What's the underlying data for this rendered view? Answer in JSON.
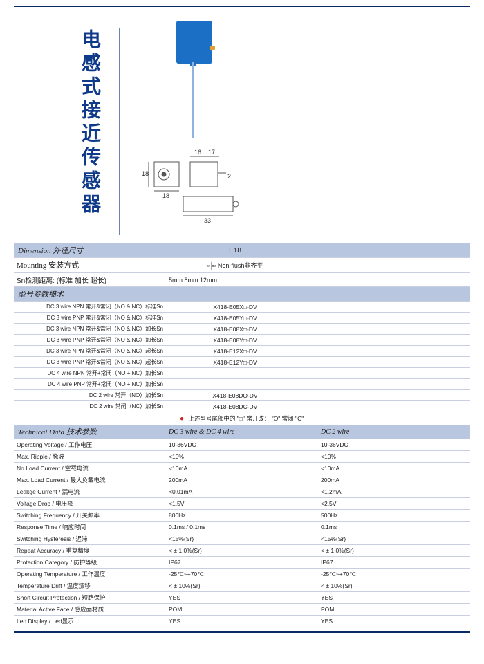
{
  "page": {
    "title_cn": "电感式接近传感器",
    "colors": {
      "accent": "#0f3a8a",
      "band": "#b8c6e0",
      "rule": "#c8d0e0",
      "sensor": "#1b6fc4"
    }
  },
  "dimension_labels": {
    "w1": "16",
    "w2": "17",
    "h1": "18",
    "h2": "18",
    "d": "33",
    "t": "2"
  },
  "dimension": {
    "header": "Dimension 外径尺寸",
    "value": "E18",
    "mounting_label": "Mounting  安装方式",
    "mounting_value": "Non-flush非齐平",
    "sn_label": "Sn检测距离: (标准 加长 超长)",
    "sn_value": "5mm  8mm 12mm"
  },
  "model_section": {
    "header": "型号参数描术",
    "rows": [
      {
        "desc": "DC 3 wire NPN 常开&常闭（NO & NC）标准Sn",
        "model": "X418-E05X□-DV"
      },
      {
        "desc": "DC 3 wire PNP 常开&常闭（NO & NC）标准Sn",
        "model": "X418-E05Y□-DV"
      },
      {
        "desc": "DC 3 wire NPN 常开&常闭（NO & NC）加长Sn",
        "model": "X418-E08X□-DV"
      },
      {
        "desc": "DC 3 wire PNP 常开&常闭（NO & NC）加长Sn",
        "model": "X418-E08Y□-DV"
      },
      {
        "desc": "DC 3 wire NPN 常开&常闭（NO & NC）超长Sn",
        "model": "X418-E12X□-DV"
      },
      {
        "desc": "DC 3 wire PNP 常开&常闭（NO & NC）超长Sn",
        "model": "X418-E12Y□-DV"
      },
      {
        "desc": "DC 4 wire NPN 常开+常闭（NO + NC）加长Sn",
        "model": ""
      },
      {
        "desc": "DC 4 wire PNP 常开+常闭（NO + NC）加长Sn",
        "model": ""
      },
      {
        "desc": "DC 2 wire 常开（NO）加长Sn",
        "model": "X418-E08DO-DV"
      },
      {
        "desc": "DC 2 wire 常闭（NC）加长Sn",
        "model": "X418-E08DC-DV"
      }
    ],
    "note": "上述型号尾部中的 \"□\"    常开改： \"O\"   常闭  \"C\""
  },
  "tech": {
    "header": "Technical Data 技术参数",
    "col2": "DC 3 wire & DC 4 wire",
    "col3": "DC 2 wire",
    "rows": [
      {
        "p": "Operating Voltage / 工作电压",
        "a": "10-36VDC",
        "b": "10-36VDC"
      },
      {
        "p": "Max. Ripple / 脉波",
        "a": "<10%",
        "b": "<10%"
      },
      {
        "p": "No Load Current / 空载电流",
        "a": "<10mA",
        "b": "<10mA"
      },
      {
        "p": "Max. Load Current / 最大负载电流",
        "a": "200mA",
        "b": "200mA"
      },
      {
        "p": "Leakge Current / 漏电流",
        "a": "<0.01mA",
        "b": "<1.2mA"
      },
      {
        "p": "Voltage Drop / 电压降",
        "a": "<1.5V",
        "b": "<2.5V"
      },
      {
        "p": "Switching Frequency / 开关频率",
        "a": "800Hz",
        "b": "500Hz"
      },
      {
        "p": "Response Time / 响应时间",
        "a": "0.1ms / 0.1ms",
        "b": "0.1ms"
      },
      {
        "p": "Switching Hysteresis / 迟滞",
        "a": "<15%(Sr)",
        "b": "<15%(Sr)"
      },
      {
        "p": "Repeat Accuracy / 重复精度",
        "a": "< ± 1.0%(Sr)",
        "b": "< ± 1.0%(Sr)"
      },
      {
        "p": "Protection Category / 防护等级",
        "a": "IP67",
        "b": "IP67"
      },
      {
        "p": "Operating Temperature / 工作温度",
        "a": "-25℃~+70℃",
        "b": "-25℃~+70℃"
      },
      {
        "p": "Temperature Drift / 温度漂移",
        "a": "< ± 10%(Sr)",
        "b": "< ± 10%(Sr)"
      },
      {
        "p": "Short Circuit Protection / 短路保护",
        "a": "YES",
        "b": "YES"
      },
      {
        "p": "Material Active Face / 感应面材质",
        "a": "POM",
        "b": "POM"
      },
      {
        "p": "Led Display / Led显示",
        "a": "YES",
        "b": "YES"
      }
    ]
  }
}
